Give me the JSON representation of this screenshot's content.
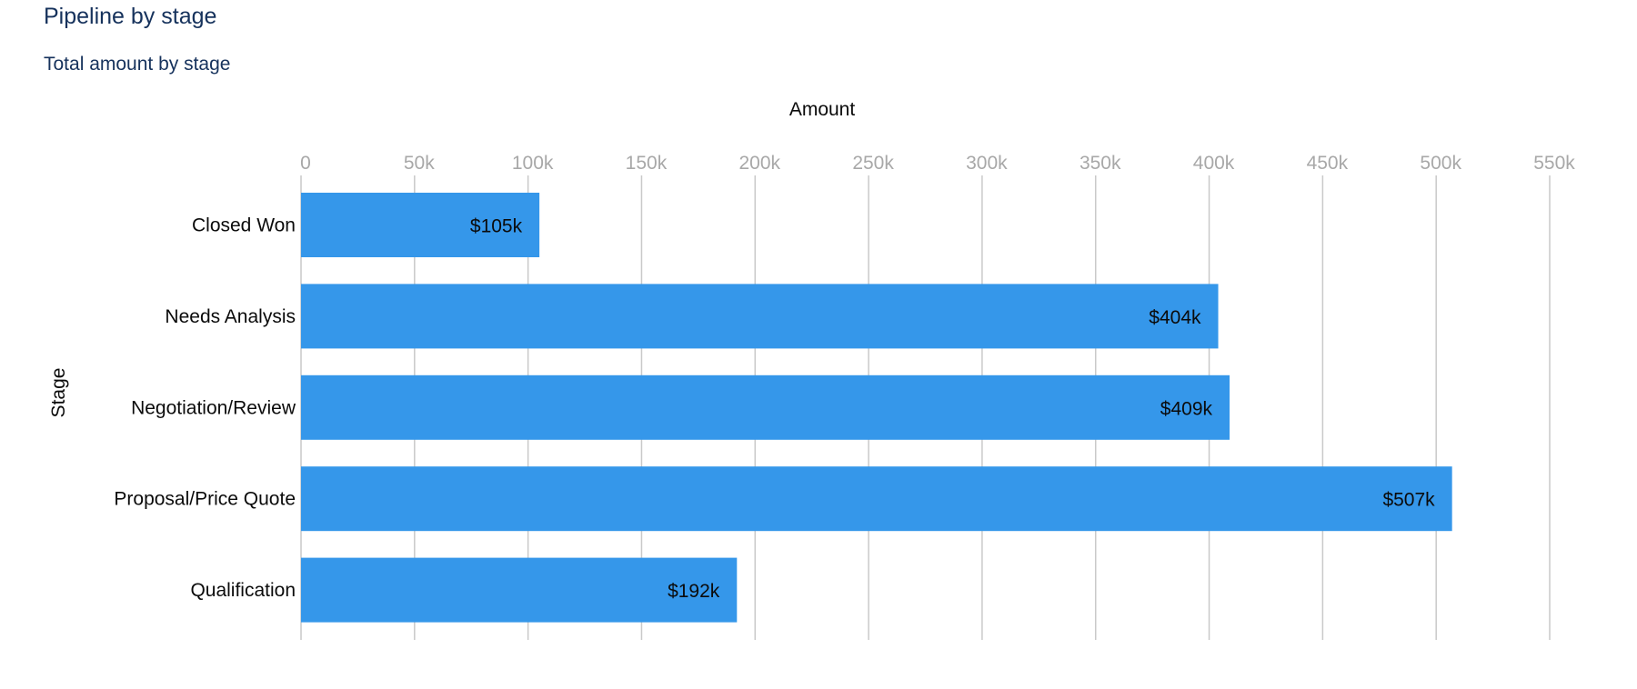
{
  "header": {
    "title": "Pipeline by stage",
    "subtitle": "Total amount by stage"
  },
  "colors": {
    "bar": "#3597ea",
    "grid": "#c9c9c9",
    "tick": "#a8a8a8",
    "title": "#16325c"
  },
  "chart_data": {
    "type": "bar",
    "orientation": "horizontal",
    "title": "Pipeline by stage",
    "subtitle": "Total amount by stage",
    "xlabel": "Amount",
    "ylabel": "Stage",
    "categories": [
      "Closed Won",
      "Needs Analysis",
      "Negotiation/Review",
      "Proposal/Price Quote",
      "Qualification"
    ],
    "values": [
      105000,
      404000,
      409000,
      507000,
      192000
    ],
    "data_labels": [
      "$105k",
      "$404k",
      "$409k",
      "$507k",
      "$192k"
    ],
    "xlim": [
      0,
      550000
    ],
    "x_ticks": [
      0,
      50000,
      100000,
      150000,
      200000,
      250000,
      300000,
      350000,
      400000,
      450000,
      500000,
      550000
    ],
    "x_tick_labels": [
      "0",
      "50k",
      "100k",
      "150k",
      "200k",
      "250k",
      "300k",
      "350k",
      "400k",
      "450k",
      "500k",
      "550k"
    ],
    "x_axis_position": "top",
    "grid": true,
    "legend": "none"
  }
}
